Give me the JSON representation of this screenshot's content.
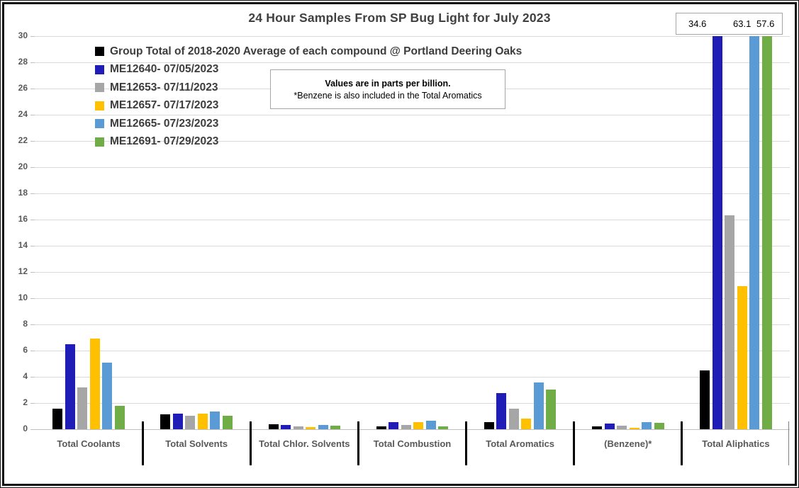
{
  "chart": {
    "note": {
      "line1": "Values are in parts per billion.",
      "line2": "*Benzene is also included in the Total Aromatics"
    }
  },
  "chart_data": {
    "type": "bar",
    "title": "24 Hour Samples From SP Bug Light for July 2023",
    "value_unit": "parts per billion",
    "ylim": [
      0,
      30
    ],
    "ytick_step": 2,
    "yticks": [
      0,
      2,
      4,
      6,
      8,
      10,
      12,
      14,
      16,
      18,
      20,
      22,
      24,
      26,
      28,
      30
    ],
    "grid": true,
    "legend_position": "top-left",
    "categories": [
      "Total Coolants",
      "Total Solvents",
      "Total Chlor. Solvents",
      "Total Combustion",
      "Total Aromatics",
      "(Benzene)*",
      "Total Aliphatics"
    ],
    "series": [
      {
        "name": "Group Total of 2018-2020 Average of each compound @ Portland Deering Oaks",
        "color": "#000000",
        "values": [
          1.55,
          1.15,
          0.4,
          0.2,
          0.55,
          0.2,
          4.5
        ]
      },
      {
        "name": "ME12640- 07/05/2023",
        "color": "#1f1db5",
        "values": [
          6.5,
          1.2,
          0.35,
          0.55,
          2.75,
          0.45,
          34.6
        ]
      },
      {
        "name": "ME12653- 07/11/2023",
        "color": "#a6a6a6",
        "values": [
          3.2,
          1.05,
          0.2,
          0.35,
          1.55,
          0.25,
          16.3
        ]
      },
      {
        "name": "ME12657- 07/17/2023",
        "color": "#ffc000",
        "values": [
          6.9,
          1.2,
          0.15,
          0.55,
          0.8,
          0.1,
          10.9
        ]
      },
      {
        "name": "ME12665- 07/23/2023",
        "color": "#5b9bd5",
        "values": [
          5.1,
          1.35,
          0.3,
          0.65,
          3.55,
          0.55,
          63.1
        ]
      },
      {
        "name": "ME12691- 07/29/2023",
        "color": "#70ad47",
        "values": [
          1.8,
          1.05,
          0.25,
          0.2,
          3.05,
          0.5,
          57.6
        ]
      }
    ],
    "offscale_values": [
      "34.6",
      "63.1",
      "57.6"
    ],
    "offscale_note": "Total Aliphatics bars for ME12640, ME12665 and ME12691 exceed the y-axis maximum of 30; actual values shown in box"
  }
}
